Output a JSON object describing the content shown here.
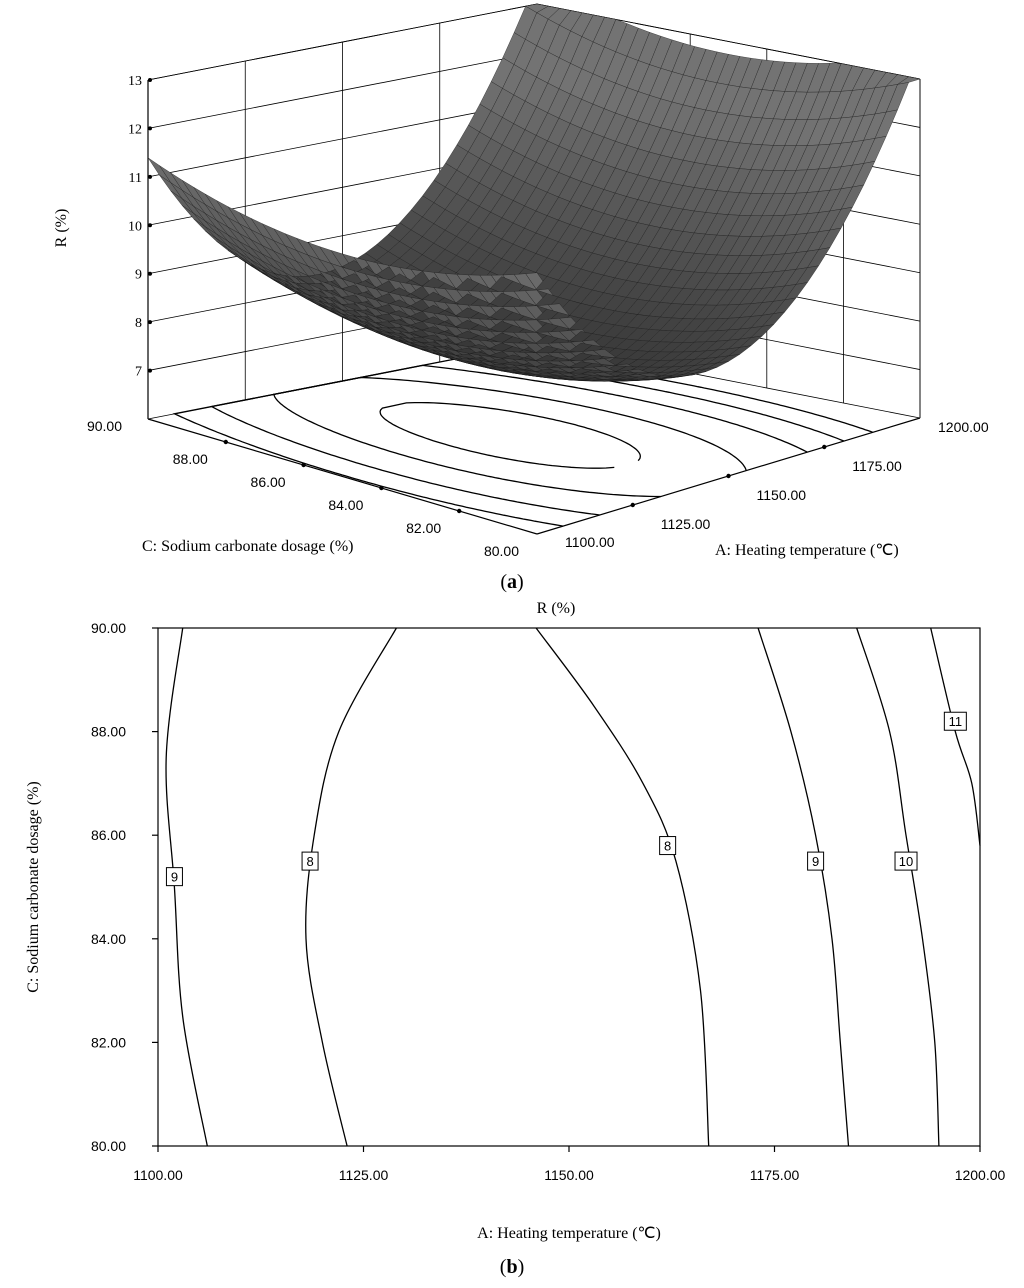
{
  "chart_data": [
    {
      "type": "surface",
      "panel": "(a)",
      "zlabel": "R (%)",
      "xlabel": "A: Heating temperature (℃)",
      "ylabel": "C: Sodium carbonate dosage (%)",
      "x_ticks": [
        "1100.00",
        "1125.00",
        "1150.00",
        "1175.00",
        "1200.00"
      ],
      "y_ticks": [
        "80.00",
        "82.00",
        "84.00",
        "86.00",
        "88.00",
        "90.00"
      ],
      "z_ticks": [
        "7",
        "8",
        "9",
        "10",
        "11",
        "12",
        "13"
      ],
      "xlim": [
        1100,
        1200
      ],
      "ylim": [
        80,
        90
      ],
      "zlim": [
        6,
        13
      ],
      "model": {
        "min_x": 1145,
        "min_y": 85,
        "min_z": 7.5,
        "kx": 4.1,
        "ky": 0.8
      }
    },
    {
      "type": "contour",
      "panel": "(b)",
      "title": "R (%)",
      "xlabel": "A: Heating temperature (℃)",
      "ylabel": "C: Sodium carbonate dosage (%)",
      "x_ticks": [
        "1100.00",
        "1125.00",
        "1150.00",
        "1175.00",
        "1200.00"
      ],
      "y_ticks": [
        "80.00",
        "82.00",
        "84.00",
        "86.00",
        "88.00",
        "90.00"
      ],
      "xlim": [
        1100,
        1200
      ],
      "ylim": [
        80,
        90
      ],
      "contours": [
        {
          "level": "9",
          "label": "9",
          "label_at": [
            1102,
            85.2
          ],
          "points": [
            [
              1103,
              90
            ],
            [
              1101,
              87.5
            ],
            [
              1102,
              85
            ],
            [
              1103,
              82.5
            ],
            [
              1106,
              80
            ]
          ]
        },
        {
          "level": "8",
          "label": "8",
          "label_at": [
            1118.5,
            85.5
          ],
          "points": [
            [
              1129,
              90
            ],
            [
              1122,
              88
            ],
            [
              1119,
              86
            ],
            [
              1118,
              84
            ],
            [
              1120,
              82
            ],
            [
              1123,
              80
            ]
          ]
        },
        {
          "level": "8",
          "label": "8",
          "label_at": [
            1162,
            85.8
          ],
          "points": [
            [
              1146,
              90
            ],
            [
              1153,
              88.5
            ],
            [
              1159,
              87
            ],
            [
              1163,
              85.5
            ],
            [
              1166,
              83
            ],
            [
              1167,
              80
            ]
          ]
        },
        {
          "level": "9",
          "label": "9",
          "label_at": [
            1180,
            85.5
          ],
          "points": [
            [
              1173,
              90
            ],
            [
              1177,
              88
            ],
            [
              1180,
              86
            ],
            [
              1182,
              84
            ],
            [
              1183,
              82
            ],
            [
              1184,
              80
            ]
          ]
        },
        {
          "level": "10",
          "label": "10",
          "label_at": [
            1191,
            85.5
          ],
          "points": [
            [
              1185,
              90
            ],
            [
              1189,
              88
            ],
            [
              1191,
              86
            ],
            [
              1193,
              84
            ],
            [
              1194.5,
              82
            ],
            [
              1195,
              80
            ]
          ]
        },
        {
          "level": "11",
          "label": "11",
          "label_at": [
            1197,
            88.2
          ],
          "points": [
            [
              1194,
              90
            ],
            [
              1197,
              88
            ],
            [
              1199,
              87
            ],
            [
              1200,
              85.8
            ]
          ]
        }
      ]
    }
  ],
  "captions": {
    "a": "a",
    "b": "b"
  }
}
